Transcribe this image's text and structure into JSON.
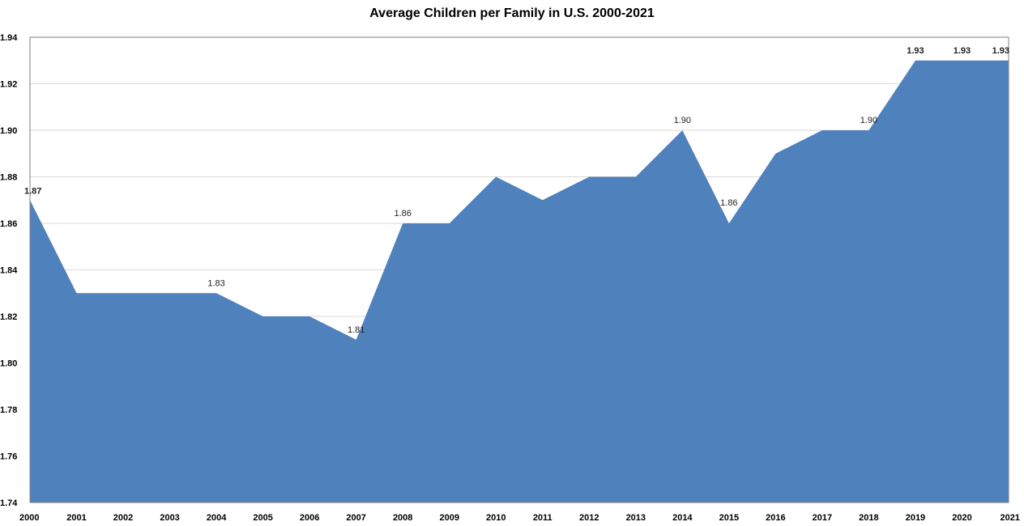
{
  "chart_data": {
    "type": "area",
    "title": "Average Children per Family in U.S. 2000-2021",
    "xlabel": "",
    "ylabel": "",
    "x": [
      "2000",
      "2001",
      "2002",
      "2003",
      "2004",
      "2005",
      "2006",
      "2007",
      "2008",
      "2009",
      "2010",
      "2011",
      "2012",
      "2013",
      "2014",
      "2015",
      "2016",
      "2017",
      "2018",
      "2019",
      "2020",
      "2021"
    ],
    "series": [
      {
        "values": [
          1.87,
          1.83,
          1.83,
          1.83,
          1.83,
          1.82,
          1.82,
          1.81,
          1.86,
          1.86,
          1.88,
          1.87,
          1.88,
          1.88,
          1.9,
          1.86,
          1.89,
          1.9,
          1.9,
          1.93,
          1.93,
          1.93
        ]
      }
    ],
    "ylim": [
      1.74,
      1.94
    ],
    "yticks": [
      "1.74",
      "1.76",
      "1.78",
      "1.80",
      "1.82",
      "1.84",
      "1.86",
      "1.88",
      "1.90",
      "1.92",
      "1.94"
    ],
    "grid": true,
    "legend": "none",
    "fill_color": "#4F81BD",
    "data_labels": [
      {
        "x": "2000",
        "text": "1.87",
        "bold": true
      },
      {
        "x": "2004",
        "text": "1.83",
        "bold": false
      },
      {
        "x": "2007",
        "text": "1.81",
        "bold": false
      },
      {
        "x": "2008",
        "text": "1.86",
        "bold": false
      },
      {
        "x": "2014",
        "text": "1.90",
        "bold": false
      },
      {
        "x": "2015",
        "text": "1.86",
        "bold": false
      },
      {
        "x": "2018",
        "text": "1.90",
        "bold": false
      },
      {
        "x": "2019",
        "text": "1.93",
        "bold": true
      },
      {
        "x": "2020",
        "text": "1.93",
        "bold": true
      },
      {
        "x": "2021",
        "text": "1.93",
        "bold": true
      }
    ]
  }
}
